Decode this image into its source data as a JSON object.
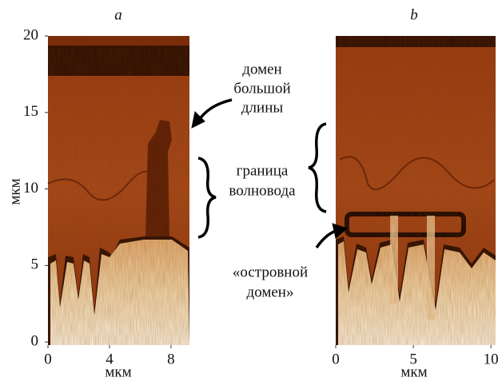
{
  "panels": [
    {
      "label": "a",
      "xlabel": "мкм",
      "ylabel": "мкм",
      "xlim": [
        0,
        9.2
      ],
      "xticks": [
        0,
        4,
        8
      ],
      "ylim": [
        -0.2,
        20
      ],
      "yticks": [
        0,
        5,
        10,
        15,
        20
      ]
    },
    {
      "label": "b",
      "xlabel": "мкм",
      "xlim": [
        0,
        10.3
      ],
      "xticks": [
        0,
        5,
        10
      ],
      "ylim": [
        -0.2,
        20
      ]
    }
  ],
  "annotations": [
    {
      "lines": [
        "домен",
        "большой",
        "длины"
      ]
    },
    {
      "lines": [
        "граница",
        "волновода"
      ]
    },
    {
      "lines": [
        "«островной",
        "домен»"
      ]
    }
  ]
}
